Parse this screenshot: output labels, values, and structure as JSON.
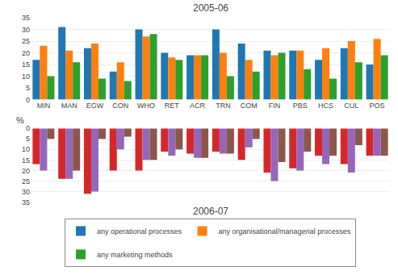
{
  "chart_data": [
    {
      "type": "bar",
      "title": "2005-06",
      "ylabel": "%",
      "categories": [
        "MIN",
        "MAN",
        "EGW",
        "CON",
        "WHO",
        "RET",
        "ACR",
        "TRN",
        "COM",
        "FIN",
        "PBS",
        "HCS",
        "CUL",
        "POS"
      ],
      "series": [
        {
          "name": "any operational processes",
          "values": [
            17,
            31,
            22,
            12,
            30,
            20,
            19,
            30,
            24,
            21,
            21,
            17,
            22,
            15
          ]
        },
        {
          "name": "any organisational/managerial processes",
          "values": [
            23,
            21,
            24,
            16,
            27,
            18,
            19,
            20,
            17,
            19,
            21,
            22,
            25,
            26
          ]
        },
        {
          "name": "any marketing methods",
          "values": [
            10,
            16,
            9,
            8,
            28,
            17,
            19,
            10,
            12,
            20,
            13,
            9,
            16,
            19
          ]
        }
      ],
      "ylim": [
        0,
        35
      ],
      "yticks": [
        0,
        5,
        10,
        15,
        20,
        25,
        30,
        35
      ],
      "grid": true,
      "legend": "bottom"
    },
    {
      "type": "bar",
      "title": "2006-07",
      "categories": [
        "MIN",
        "MAN",
        "EGW",
        "CON",
        "WHO",
        "RET",
        "ACR",
        "TRN",
        "COM",
        "FIN",
        "PBS",
        "HCS",
        "CUL",
        "POS"
      ],
      "series": [
        {
          "name": "any operational processes",
          "values": [
            17,
            24,
            31,
            20,
            20,
            11,
            12,
            11,
            15,
            21,
            19,
            13,
            17,
            13
          ]
        },
        {
          "name": "any organisational/managerial processes",
          "values": [
            20,
            24,
            30,
            10,
            15,
            13,
            14,
            12,
            9,
            25,
            20,
            17,
            21,
            13
          ]
        },
        {
          "name": "any marketing methods",
          "values": [
            5,
            20,
            5,
            4,
            15,
            10,
            14,
            12,
            5,
            16,
            11,
            13,
            8,
            13
          ]
        }
      ],
      "ylim": [
        35,
        0
      ],
      "yticks": [
        0,
        5,
        10,
        15,
        20,
        25,
        30,
        35
      ],
      "grid": true,
      "tick_labels": "y"
    }
  ]
}
